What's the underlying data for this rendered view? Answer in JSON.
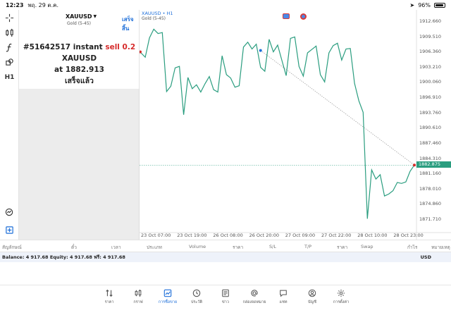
{
  "status_bar": {
    "time": "12:23",
    "date": "พฤ. 29 ต.ค.",
    "battery_percent": "96%",
    "battery_level": 0.96
  },
  "panel": {
    "symbol": "XAUUSD",
    "subtitle": "Gold (5-45)",
    "done_label": "เสร็จสิ้น",
    "order_prefix": "#51642517 instant",
    "order_action": "sell 0.2",
    "order_symbol": "XAUUSD",
    "at_label": "at",
    "price": "1882.913",
    "status": "เสร็จแล้ว"
  },
  "chart_data": {
    "type": "line",
    "title": "XAUUSD • H1",
    "subtitle": "Gold (5-45)",
    "y_ticks": [
      "1912.660",
      "1909.510",
      "1906.360",
      "1903.210",
      "1900.060",
      "1896.910",
      "1893.760",
      "1890.610",
      "1887.460",
      "1884.310",
      "1881.160",
      "1878.010",
      "1874.860",
      "1871.710"
    ],
    "current_price": "1882.875",
    "x_ticks": [
      "23 Oct 07:00",
      "23 Oct 19:00",
      "26 Oct 08:00",
      "26 Oct 20:00",
      "27 Oct 09:00",
      "27 Oct 22:00",
      "28 Oct 10:00",
      "28 Oct 23:00"
    ],
    "ylim": [
      1870.0,
      1914.5
    ],
    "series": [
      {
        "values": [
          1906.1,
          1905.2,
          1909.2,
          1911.0,
          1910.1,
          1910.3,
          1898.1,
          1899.2,
          1903.0,
          1903.3,
          1893.3,
          1901.0,
          1898.7,
          1899.5,
          1898.0,
          1899.7,
          1901.2,
          1898.5,
          1898.0,
          1905.5,
          1901.6,
          1900.9,
          1899.0,
          1899.3,
          1907.3,
          1908.3,
          1906.9,
          1907.9,
          1903.1,
          1902.3,
          1908.9,
          1906.3,
          1907.7,
          1904.5,
          1901.4,
          1909.1,
          1909.4,
          1903.3,
          1901.3,
          1906.1,
          1906.8,
          1907.5,
          1901.6,
          1900.1,
          1906.1,
          1907.6,
          1908.1,
          1904.6,
          1906.9,
          1907.0,
          1899.8,
          1896.2,
          1893.8,
          1871.8,
          1881.9,
          1880.0,
          1880.9,
          1876.5,
          1876.9,
          1877.6,
          1879.3,
          1879.1,
          1879.4,
          1881.6,
          1882.9
        ]
      }
    ],
    "trade_markers": [
      {
        "x_index": 28,
        "price": 1906.6,
        "color": "#1e6fd9"
      },
      {
        "x_index": 64,
        "price": 1882.9,
        "color": "#d62b2b"
      }
    ],
    "entry_price_marker": 1906.3
  },
  "table_headers": [
    "สัญลักษณ์",
    "ตั๋ว",
    "เวลา",
    "ประเภท",
    "Volume",
    "ราคา",
    "S/L",
    "T/P",
    "ราคา",
    "Swap",
    "กำไร",
    "หมายเหตุ"
  ],
  "balance_bar": {
    "text": "Balance: 4 917.68 Equity: 4 917.68 ฟรี: 4 917.68",
    "currency": "USD"
  },
  "tabs": [
    {
      "label": "ราคา",
      "icon": "arrows-up-down-icon"
    },
    {
      "label": "กราฟ",
      "icon": "candles-icon"
    },
    {
      "label": "การซื้อขาย",
      "icon": "trade-chart-icon",
      "active": true
    },
    {
      "label": "ประวัติ",
      "icon": "history-clock-icon"
    },
    {
      "label": "ข่าว",
      "icon": "news-icon"
    },
    {
      "label": "กล่องจดหมาย",
      "icon": "at-sign-icon"
    },
    {
      "label": "แชท",
      "icon": "chat-icon"
    },
    {
      "label": "บัญชี",
      "icon": "account-icon"
    },
    {
      "label": "การตั้งค่า",
      "icon": "gear-icon"
    }
  ],
  "colors": {
    "accent": "#1e6fd9",
    "line": "#2a9d7f",
    "sell": "#d62b2b"
  }
}
